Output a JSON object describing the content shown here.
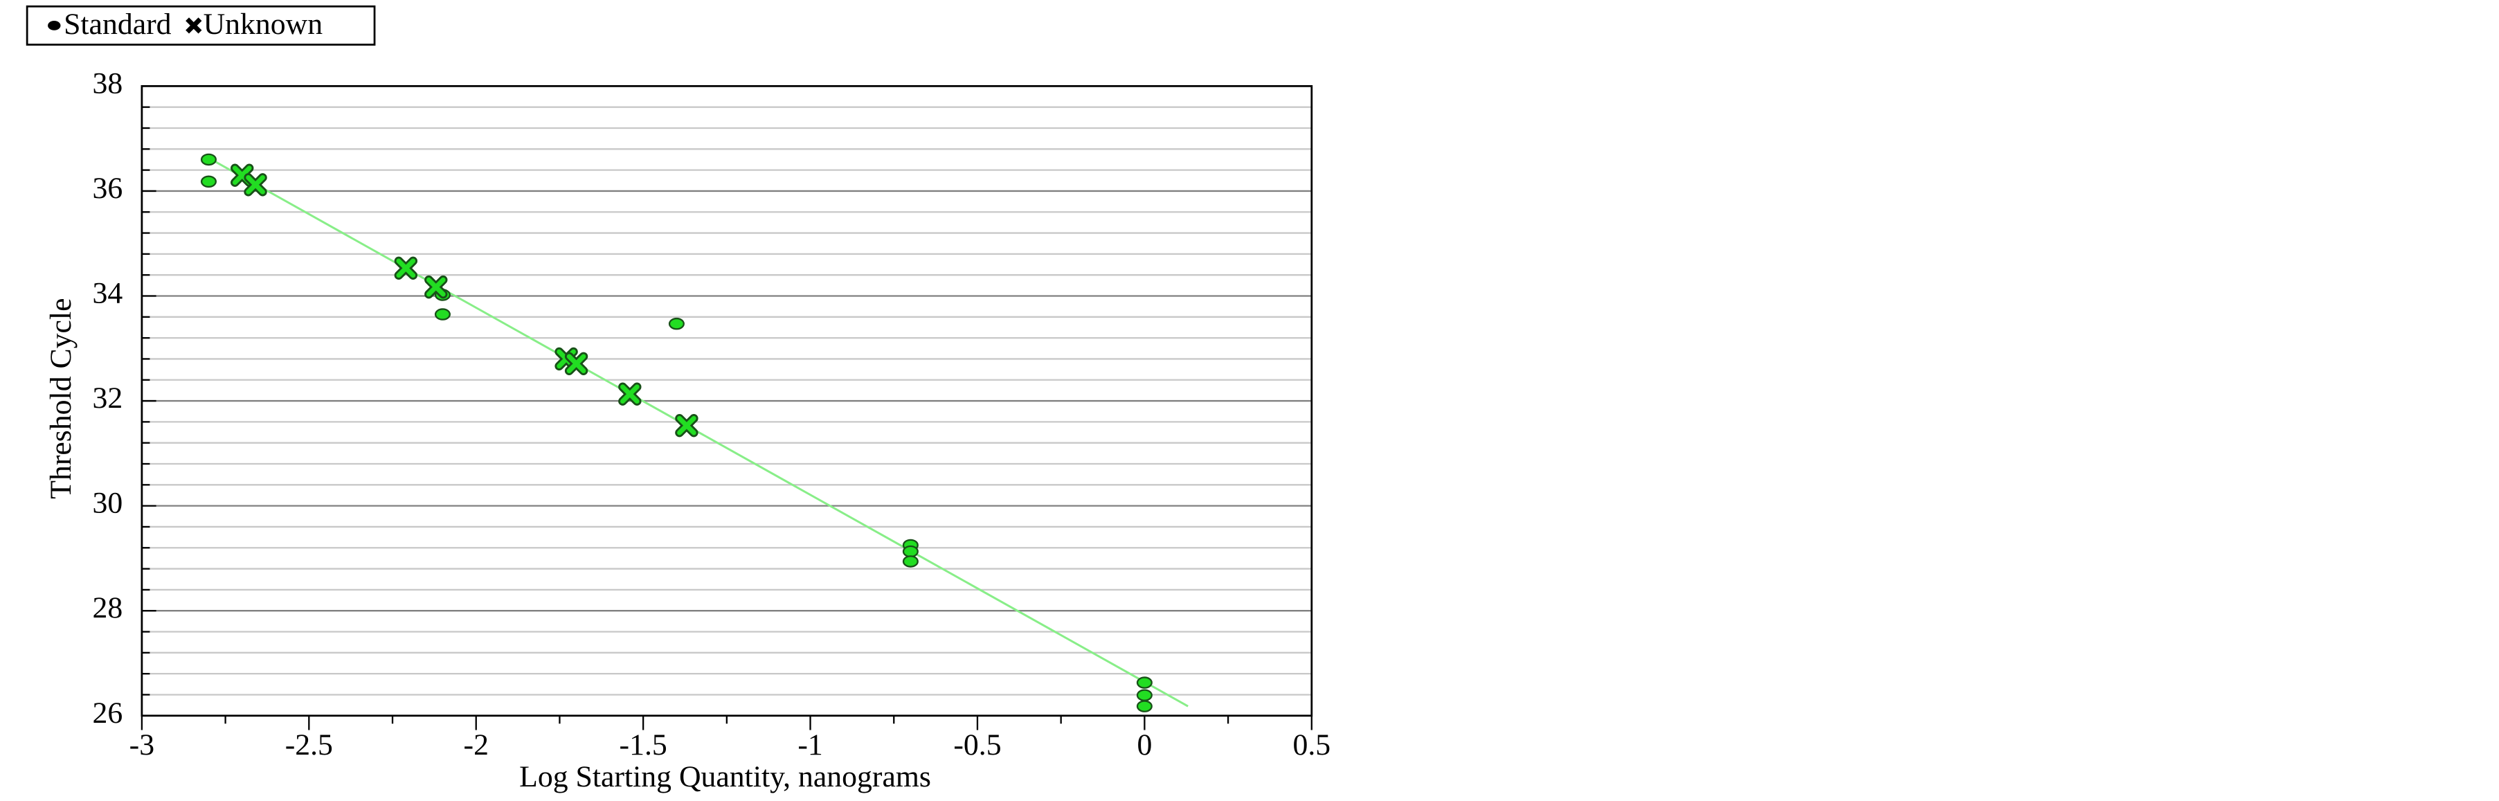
{
  "chart_data": {
    "type": "scatter",
    "x_label": "Log Starting Quantity, nanograms",
    "y_label": "Threshold Cycle",
    "xlim": [
      -3,
      0.5
    ],
    "xticks": [
      -3,
      -2.5,
      -2,
      -1.5,
      -1,
      -0.5,
      0,
      0.5
    ],
    "ylim": [
      26,
      38
    ],
    "yticks": [
      26,
      28,
      30,
      32,
      34,
      36,
      38
    ],
    "grid": true,
    "legend": "top-left",
    "series": [
      {
        "name": "Standard",
        "marker": "circle",
        "color": "#22dd22",
        "x": [
          -2.8,
          -2.8,
          -2.1,
          -2.1,
          -1.4,
          -0.7,
          -0.7,
          -0.7,
          0,
          0,
          0
        ],
        "values": [
          36.6,
          36.18,
          34.02,
          33.65,
          33.47,
          29.25,
          29.13,
          28.94,
          26.63,
          26.39,
          26.18
        ]
      },
      {
        "name": "Unknown",
        "marker": "x",
        "color": "#22dd22",
        "x": [
          -2.7,
          -2.66,
          -2.21,
          -2.12,
          -1.73,
          -1.7,
          -1.54,
          -1.37
        ],
        "values": [
          36.3,
          36.12,
          34.53,
          34.17,
          32.8,
          32.71,
          32.13,
          31.53
        ]
      }
    ],
    "fit_line": {
      "color": "#88ee88",
      "x": [
        -2.8,
        0.13
      ],
      "values": [
        36.63,
        26.18
      ]
    }
  }
}
